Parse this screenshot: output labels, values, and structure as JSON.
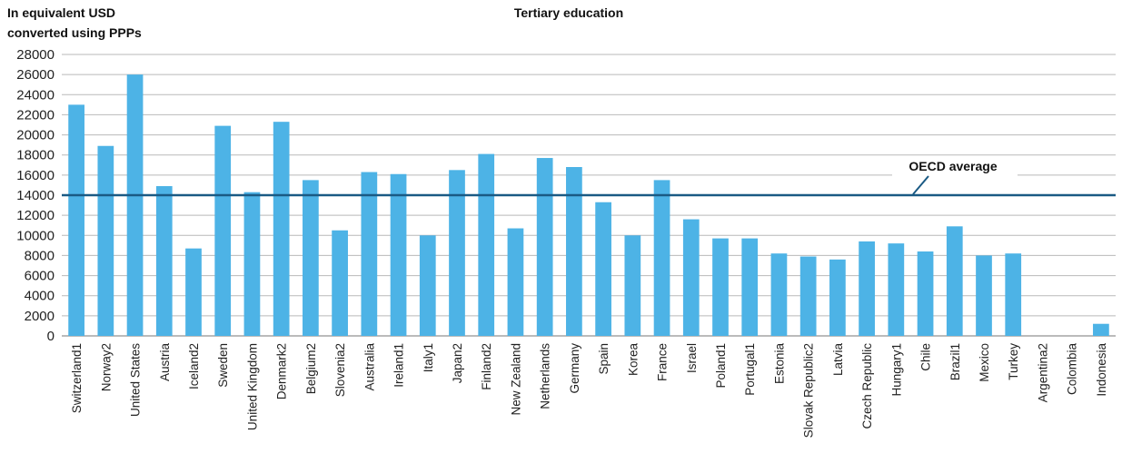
{
  "chart_data": {
    "type": "bar",
    "title": "Tertiary education",
    "ylabel_line1": "In equivalent USD",
    "ylabel_line2": "converted using PPPs",
    "ylim": [
      0,
      28000
    ],
    "yticks": [
      0,
      2000,
      4000,
      6000,
      8000,
      10000,
      12000,
      14000,
      16000,
      18000,
      20000,
      22000,
      24000,
      26000,
      28000
    ],
    "grid": "horizontal",
    "bar_color": "#4db3e6",
    "reference_line": {
      "label": "OECD average",
      "value": 14000,
      "color": "#1a5a84"
    },
    "categories": [
      "Switzerland1",
      "Norway2",
      "United States",
      "Austria",
      "Iceland2",
      "Sweden",
      "United Kingdom",
      "Denmark2",
      "Belgium2",
      "Slovenia2",
      "Australia",
      "Ireland1",
      "Italy1",
      "Japan2",
      "Finland2",
      "New Zealand",
      "Netherlands",
      "Germany",
      "Spain",
      "Korea",
      "France",
      "Israel",
      "Poland1",
      "Portugal1",
      "Estonia",
      "Slovak Republic2",
      "Latvia",
      "Czech Republic",
      "Hungary1",
      "Chile",
      "Brazil1",
      "Mexico",
      "Turkey",
      "Argentina2",
      "Colombia",
      "Indonesia"
    ],
    "values": [
      23000,
      18900,
      26000,
      14900,
      8700,
      20900,
      14300,
      21300,
      15500,
      10500,
      16300,
      16100,
      10000,
      16500,
      18100,
      10700,
      17700,
      16800,
      13300,
      10000,
      15500,
      11600,
      9700,
      9700,
      8200,
      7900,
      7600,
      9400,
      9200,
      8400,
      10900,
      8000,
      8200,
      0,
      0,
      1200
    ]
  }
}
